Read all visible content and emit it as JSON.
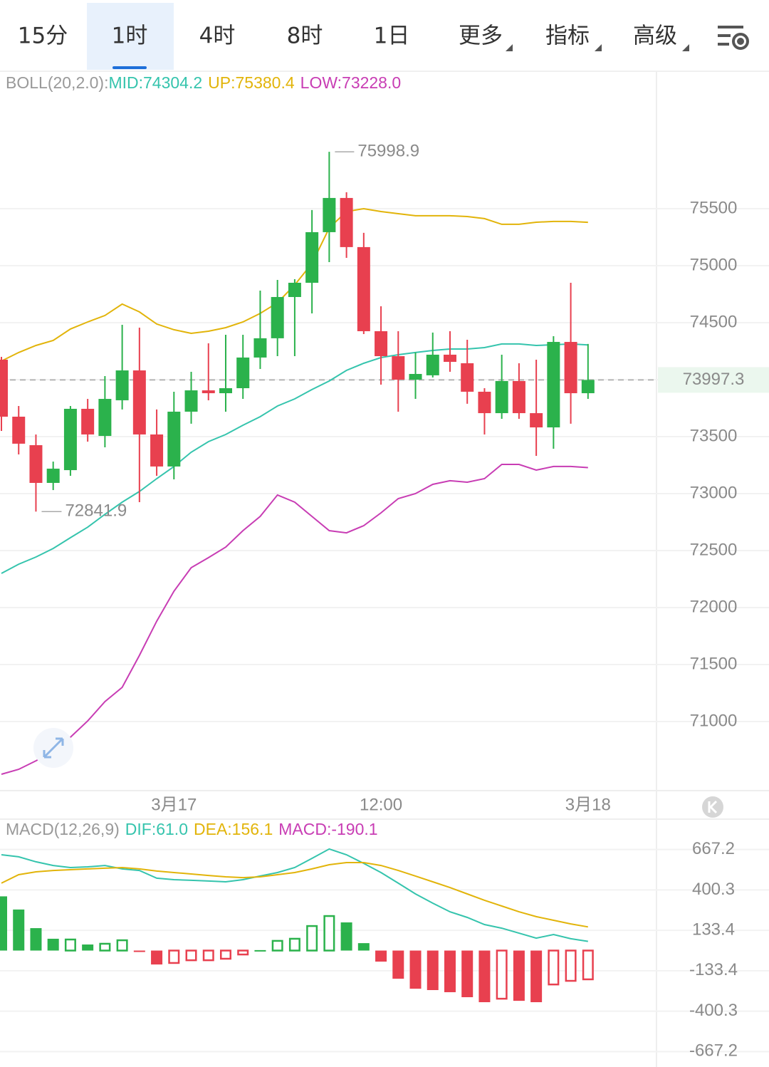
{
  "tabs": [
    "15分",
    "1时",
    "4时",
    "8时",
    "1日",
    "更多",
    "指标",
    "高级"
  ],
  "selected_tab": 1,
  "chart_data": [
    {
      "type": "candlestick",
      "indicator_label": "BOLL(20,2.0):",
      "categories": [
        null,
        null,
        null,
        null,
        null,
        null,
        null,
        null,
        null,
        null,
        "3月17",
        null,
        null,
        null,
        null,
        null,
        null,
        null,
        null,
        null,
        null,
        null,
        "12:00",
        null,
        null,
        null,
        null,
        null,
        null,
        null,
        null,
        null,
        null,
        null,
        "3月18"
      ],
      "open": [
        74175,
        73675,
        73425,
        73094,
        73206,
        73744,
        73506,
        73819,
        74081,
        73519,
        73238,
        73719,
        73906,
        73881,
        73925,
        74194,
        74363,
        74725,
        74850,
        75294,
        75594,
        75163,
        74425,
        74206,
        74000,
        74038,
        74219,
        74144,
        73894,
        73706,
        73988,
        73706,
        73581,
        74331,
        73881
      ],
      "high": [
        74200,
        73769,
        73519,
        73281,
        73769,
        73831,
        74031,
        74481,
        74456,
        73738,
        73894,
        74069,
        74319,
        74394,
        74394,
        74781,
        74875,
        74881,
        75488,
        75998.9,
        75644,
        75288,
        74644,
        74425,
        74238,
        74413,
        74425,
        74350,
        73925,
        74219,
        74144,
        74175,
        74381,
        74850,
        74313
      ],
      "low": [
        73550,
        73344,
        72841.9,
        73031,
        73156,
        73456,
        73406,
        73738,
        72925,
        73156,
        73125,
        73613,
        73819,
        73719,
        73831,
        74094,
        74206,
        74206,
        74581,
        75031,
        75069,
        74400,
        73956,
        73719,
        73831,
        74019,
        74069,
        73788,
        73519,
        73656,
        73656,
        73331,
        73394,
        73613,
        73831
      ],
      "close": [
        73675,
        73438,
        73094,
        73219,
        73744,
        73519,
        73831,
        74081,
        73519,
        73238,
        73719,
        73906,
        73881,
        73925,
        74194,
        74363,
        74725,
        74850,
        75294,
        75594,
        75163,
        74425,
        74206,
        74000,
        74050,
        74219,
        74156,
        73894,
        73706,
        73988,
        73706,
        73581,
        74331,
        73881,
        73997.3
      ],
      "up_color": "#2bb24c",
      "down_color": "#e8404f",
      "series": [
        {
          "label": "MID:74304.2",
          "color": "#35c4ad",
          "values": [
            72300,
            72381,
            72444,
            72519,
            72613,
            72706,
            72819,
            72925,
            73019,
            73131,
            73238,
            73363,
            73456,
            73519,
            73600,
            73675,
            73769,
            73831,
            73913,
            73988,
            74081,
            74144,
            74194,
            74219,
            74238,
            74256,
            74269,
            74269,
            74281,
            74313,
            74313,
            74300,
            74306,
            74313,
            74304.2
          ]
        },
        {
          "label": "UP:75380.4",
          "color": "#e2b40a",
          "values": [
            74163,
            74238,
            74300,
            74344,
            74444,
            74506,
            74563,
            74663,
            74594,
            74488,
            74438,
            74406,
            74425,
            74456,
            74506,
            74581,
            74675,
            74831,
            75019,
            75331,
            75475,
            75500,
            75475,
            75456,
            75438,
            75438,
            75438,
            75431,
            75413,
            75363,
            75363,
            75381,
            75388,
            75388,
            75380.4
          ]
        },
        {
          "label": "LOW:73228.0",
          "color": "#c83db4",
          "values": [
            70538,
            70581,
            70656,
            70738,
            70863,
            71006,
            71175,
            71300,
            71581,
            71881,
            72144,
            72350,
            72438,
            72531,
            72675,
            72800,
            72988,
            72925,
            72800,
            72675,
            72656,
            72719,
            72831,
            72956,
            73000,
            73081,
            73113,
            73100,
            73131,
            73256,
            73256,
            73206,
            73238,
            73238,
            73228
          ]
        }
      ],
      "ylim": [
        70394,
        76706
      ],
      "yticks": [
        71000,
        71500,
        72000,
        72500,
        73000,
        73500,
        74000,
        74500,
        75000,
        75500
      ],
      "last_price": 73997.3,
      "grid": true
    },
    {
      "type": "macd",
      "indicator_label": "MACD(12,26,9)",
      "series": [
        {
          "label": "DIF:61.0",
          "color": "#35c4ad",
          "values": [
            633,
            619,
            586,
            562,
            548,
            553,
            562,
            539,
            529,
            478,
            468,
            464,
            459,
            454,
            468,
            492,
            515,
            548,
            609,
            671,
            633,
            576,
            515,
            445,
            374,
            313,
            256,
            219,
            172,
            148,
            115,
            82,
            106,
            78,
            61.0
          ]
        },
        {
          "label": "DEA:156.1",
          "color": "#e2b40a",
          "values": [
            445,
            501,
            520,
            529,
            534,
            539,
            544,
            548,
            539,
            525,
            515,
            506,
            496,
            487,
            482,
            487,
            501,
            515,
            539,
            567,
            581,
            581,
            562,
            529,
            492,
            454,
            416,
            374,
            332,
            294,
            256,
            224,
            200,
            176,
            156.1
          ]
        },
        {
          "label": "MACD:-190.1",
          "color": "#c83db4",
          "type": "bar",
          "up_color": "#2bb24c",
          "down_color": "#e8404f",
          "values": [
            358,
            271,
            148,
            78,
            73,
            40,
            45,
            68,
            -3,
            -92,
            -82,
            -64,
            -64,
            -54,
            -26,
            3,
            64,
            78,
            162,
            228,
            186,
            49,
            -73,
            -186,
            -252,
            -261,
            -275,
            -308,
            -341,
            -318,
            -332,
            -341,
            -224,
            -200,
            -190.1
          ],
          "hollow": [
            false,
            false,
            false,
            false,
            true,
            false,
            true,
            true,
            false,
            false,
            true,
            true,
            true,
            true,
            true,
            false,
            true,
            true,
            true,
            true,
            false,
            false,
            false,
            false,
            false,
            false,
            false,
            false,
            false,
            true,
            false,
            false,
            true,
            true,
            true
          ]
        }
      ],
      "ylim": [
        -769,
        868
      ],
      "yticks": [
        -667.2,
        -400.3,
        -133.4,
        133.4,
        400.3,
        667.2
      ],
      "grid": true
    }
  ]
}
